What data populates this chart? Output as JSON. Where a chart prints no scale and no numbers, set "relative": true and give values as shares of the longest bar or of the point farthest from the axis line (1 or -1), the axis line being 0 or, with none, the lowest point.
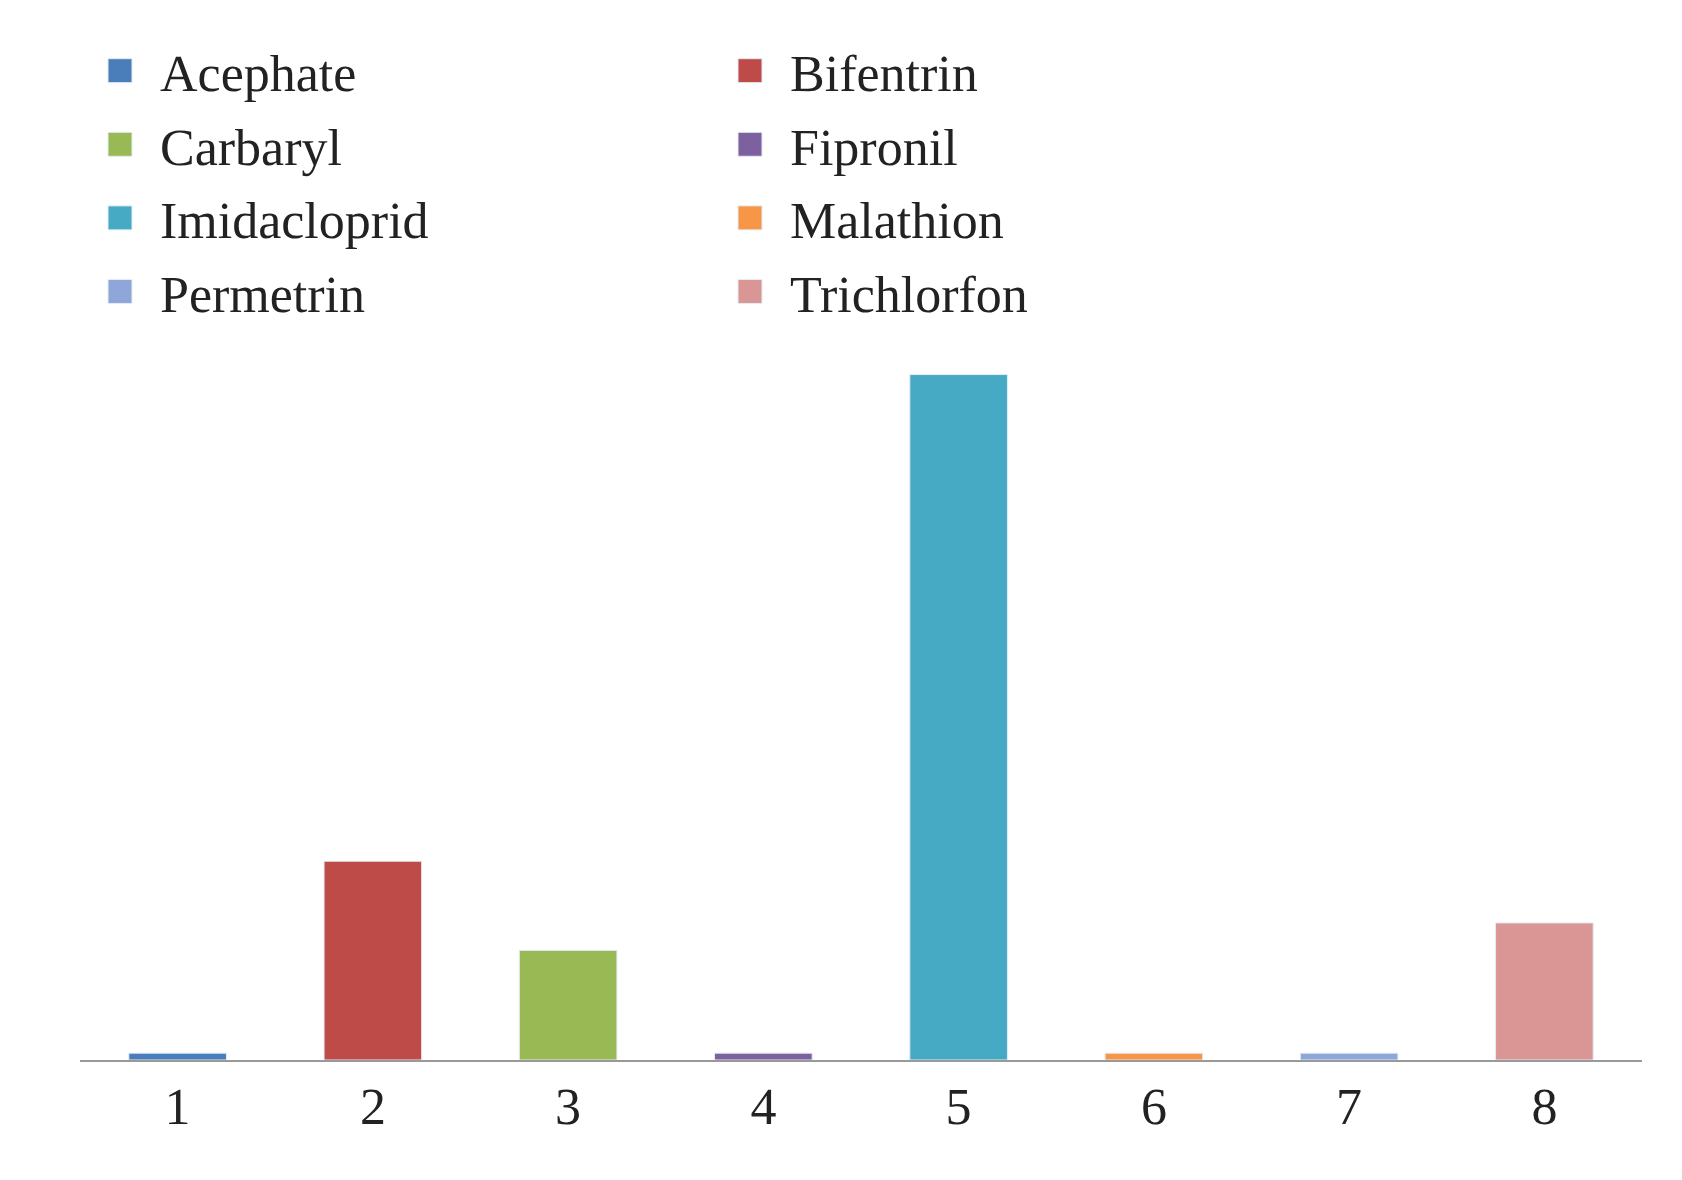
{
  "chart_data": {
    "type": "bar",
    "relative": true,
    "categories": [
      "1",
      "2",
      "3",
      "4",
      "5",
      "6",
      "7",
      "8"
    ],
    "series": [
      {
        "name": "Acephate",
        "color": "#4a7ebb",
        "values": [
          0.01,
          null,
          null,
          null,
          null,
          null,
          null,
          null
        ]
      },
      {
        "name": "Bifentrin",
        "color": "#be4b48",
        "values": [
          null,
          0.29,
          null,
          null,
          null,
          null,
          null,
          null
        ]
      },
      {
        "name": "Carbaryl",
        "color": "#98b954",
        "values": [
          null,
          null,
          0.16,
          null,
          null,
          null,
          null,
          null
        ]
      },
      {
        "name": "Fipronil",
        "color": "#7d60a0",
        "values": [
          null,
          null,
          null,
          0.01,
          null,
          null,
          null,
          null
        ]
      },
      {
        "name": "Imidacloprid",
        "color": "#46aac5",
        "values": [
          null,
          null,
          null,
          null,
          1,
          null,
          null,
          null
        ]
      },
      {
        "name": "Malathion",
        "color": "#f79646",
        "values": [
          null,
          null,
          null,
          null,
          null,
          0.01,
          null,
          null
        ]
      },
      {
        "name": "Permetrin",
        "color": "#8ea6d8",
        "values": [
          null,
          null,
          null,
          null,
          null,
          null,
          0.01,
          null
        ]
      },
      {
        "name": "Trichlorfon",
        "color": "#d99694",
        "values": [
          null,
          null,
          null,
          null,
          null,
          null,
          null,
          0.2
        ]
      }
    ],
    "legend": "top"
  }
}
